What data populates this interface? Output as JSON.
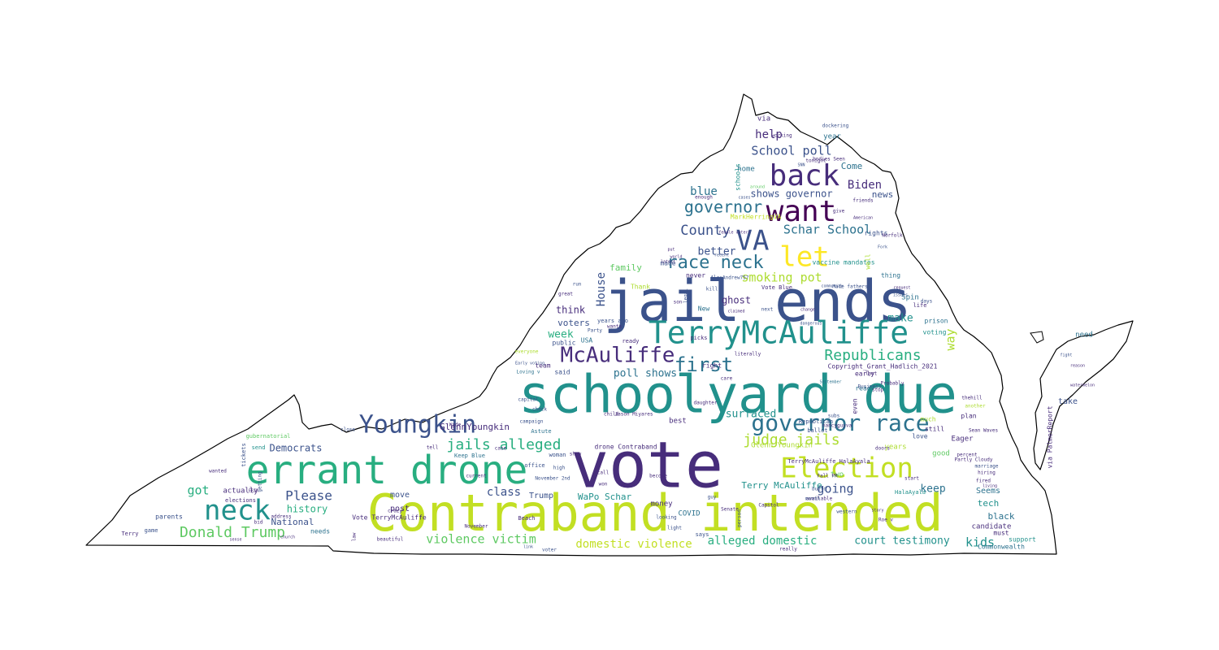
{
  "colors": {
    "background": "#ffffff",
    "outline": "#000000",
    "palette": [
      "#440154",
      "#472d7b",
      "#3b528b",
      "#2c728e",
      "#21918c",
      "#28ae80",
      "#5ec962",
      "#addc30",
      "#c2df23",
      "#fde725"
    ]
  },
  "words": [
    {
      "text": "vote",
      "color": "#472d7b"
    },
    {
      "text": "jail ends",
      "color": "#3b528b"
    },
    {
      "text": "schoolyard due",
      "color": "#21918c"
    },
    {
      "text": "Contraband intended",
      "color": "#c2df23"
    },
    {
      "text": "errant drone",
      "color": "#28ae80"
    },
    {
      "text": "TerryMcAuliffe",
      "color": "#21918c"
    },
    {
      "text": "back",
      "color": "#472d7b"
    },
    {
      "text": "want",
      "color": "#440154"
    },
    {
      "text": "VA",
      "color": "#3b528b"
    },
    {
      "text": "let",
      "color": "#fde725"
    },
    {
      "text": "Youngkin",
      "color": "#3b528b"
    },
    {
      "text": "governor race",
      "color": "#2c728e"
    },
    {
      "text": "Election",
      "color": "#c2df23"
    },
    {
      "text": "neck",
      "color": "#21918c"
    },
    {
      "text": "McAuliffe",
      "color": "#472d7b"
    },
    {
      "text": "first",
      "color": "#2c728e"
    },
    {
      "text": "race neck",
      "color": "#2c728e"
    },
    {
      "text": "governor",
      "color": "#2c728e"
    },
    {
      "text": "Republicans",
      "color": "#28ae80"
    },
    {
      "text": "Donald Trump",
      "color": "#5ec962"
    },
    {
      "text": "jails alleged",
      "color": "#28ae80"
    },
    {
      "text": "judge jails",
      "color": "#addc30"
    },
    {
      "text": "County",
      "color": "#3b528b"
    },
    {
      "text": "School poll",
      "color": "#3b528b"
    },
    {
      "text": "Schar School",
      "color": "#2c728e"
    },
    {
      "text": "smoking pot",
      "color": "#addc30"
    },
    {
      "text": "help",
      "color": "#472d7b"
    },
    {
      "text": "Biden",
      "color": "#472d7b"
    },
    {
      "text": "blue",
      "color": "#2c728e"
    },
    {
      "text": "shows governor",
      "color": "#3b528b"
    },
    {
      "text": "Come",
      "color": "#2c728e"
    },
    {
      "text": "news",
      "color": "#3b528b"
    },
    {
      "text": "better",
      "color": "#3b528b"
    },
    {
      "text": "House",
      "color": "#3b528b"
    },
    {
      "text": "family",
      "color": "#5ec962"
    },
    {
      "text": "ghost",
      "color": "#472d7b"
    },
    {
      "text": "think",
      "color": "#472d7b"
    },
    {
      "text": "voters",
      "color": "#3b528b"
    },
    {
      "text": "week",
      "color": "#28ae80"
    },
    {
      "text": "make",
      "color": "#21918c"
    },
    {
      "text": "way",
      "color": "#addc30"
    },
    {
      "text": "poll shows",
      "color": "#2c728e"
    },
    {
      "text": "got",
      "color": "#28ae80"
    },
    {
      "text": "Please",
      "color": "#3b528b"
    },
    {
      "text": "history",
      "color": "#28ae80"
    },
    {
      "text": "Democrats",
      "color": "#3b528b"
    },
    {
      "text": "going",
      "color": "#3b528b"
    },
    {
      "text": "keep",
      "color": "#2c728e"
    },
    {
      "text": "class",
      "color": "#3b528b"
    },
    {
      "text": "violence victim",
      "color": "#5ec962"
    },
    {
      "text": "domestic violence",
      "color": "#c2df23"
    },
    {
      "text": "alleged domestic",
      "color": "#28ae80"
    },
    {
      "text": "court testimony",
      "color": "#21918c"
    },
    {
      "text": "kids",
      "color": "#21918c"
    },
    {
      "text": "surfaced",
      "color": "#21918c"
    },
    {
      "text": "Terry McAuliffe",
      "color": "#21918c"
    },
    {
      "text": "GlennYoungkin",
      "color": "#472d7b"
    },
    {
      "text": "Glenn Youngkin",
      "color": "#addc30"
    },
    {
      "text": "Copyright_Grant_Hadlich_2021",
      "color": "#472d7b"
    },
    {
      "text": "tech",
      "color": "#21918c"
    },
    {
      "text": "black",
      "color": "#2c728e"
    },
    {
      "text": "Seems",
      "color": "#2c728e"
    },
    {
      "text": "candidate",
      "color": "#472d7b"
    },
    {
      "text": "Commonwealth",
      "color": "#2c728e"
    },
    {
      "text": "via PalmerReport",
      "color": "#472d7b"
    },
    {
      "text": "need",
      "color": "#2c728e"
    },
    {
      "text": "take",
      "color": "#3b528b"
    },
    {
      "text": "National",
      "color": "#3b528b"
    },
    {
      "text": "actually",
      "color": "#472d7b"
    },
    {
      "text": "WaPo Schar",
      "color": "#21918c"
    },
    {
      "text": "Trump",
      "color": "#3b528b"
    },
    {
      "text": "money",
      "color": "#472d7b"
    },
    {
      "text": "COVID",
      "color": "#2c728e"
    },
    {
      "text": "post",
      "color": "#472d7b"
    },
    {
      "text": "move",
      "color": "#3b528b"
    },
    {
      "text": "Vote TerryMcAuliffe",
      "color": "#472d7b"
    },
    {
      "text": "drone Contraband",
      "color": "#472d7b"
    },
    {
      "text": "two",
      "color": "#5ec962"
    },
    {
      "text": "good",
      "color": "#5ec962"
    },
    {
      "text": "years",
      "color": "#addc30"
    },
    {
      "text": "best",
      "color": "#472d7b"
    },
    {
      "text": "much",
      "color": "#addc30"
    },
    {
      "text": "Eager",
      "color": "#472d7b"
    },
    {
      "text": "plan",
      "color": "#472d7b"
    },
    {
      "text": "right",
      "color": "#472d7b"
    },
    {
      "text": "public",
      "color": "#3b528b"
    },
    {
      "text": "USA",
      "color": "#2c728e"
    },
    {
      "text": "team",
      "color": "#472d7b"
    },
    {
      "text": "said",
      "color": "#3b528b"
    },
    {
      "text": "Thank",
      "color": "#addc30"
    },
    {
      "text": "New",
      "color": "#2c728e"
    },
    {
      "text": "never",
      "color": "#472d7b"
    },
    {
      "text": "made",
      "color": "#3b528b"
    },
    {
      "text": "via",
      "color": "#472d7b"
    },
    {
      "text": "year",
      "color": "#2c728e"
    },
    {
      "text": "home",
      "color": "#2c728e"
    },
    {
      "text": "schools",
      "color": "#21918c"
    },
    {
      "text": "MarkHerringVA",
      "color": "#c2df23"
    },
    {
      "text": "vaccine mandates",
      "color": "#21918c"
    },
    {
      "text": "rights",
      "color": "#3b528b"
    },
    {
      "text": "well",
      "color": "#addc30"
    },
    {
      "text": "thing",
      "color": "#2c728e"
    },
    {
      "text": "Vote Blue",
      "color": "#472d7b"
    },
    {
      "text": "Spin",
      "color": "#2c728e"
    },
    {
      "text": "life",
      "color": "#472d7b"
    },
    {
      "text": "prison",
      "color": "#2c728e"
    },
    {
      "text": "voting",
      "color": "#21918c"
    },
    {
      "text": "early",
      "color": "#472d7b"
    },
    {
      "text": "read",
      "color": "#2c728e"
    },
    {
      "text": "even",
      "color": "#472d7b"
    },
    {
      "text": "still",
      "color": "#472d7b"
    },
    {
      "text": "love",
      "color": "#3b528b"
    },
    {
      "text": "must",
      "color": "#472d7b"
    },
    {
      "text": "support",
      "color": "#21918c"
    },
    {
      "text": "Republican",
      "color": "#3b528b"
    },
    {
      "text": "ballot",
      "color": "#3b528b"
    },
    {
      "text": "Beach",
      "color": "#472d7b"
    },
    {
      "text": "office",
      "color": "#3b528b"
    },
    {
      "text": "woman",
      "color": "#3b528b"
    },
    {
      "text": "needs",
      "color": "#2c728e"
    },
    {
      "text": "parents",
      "color": "#3b528b"
    },
    {
      "text": "elections",
      "color": "#472d7b"
    },
    {
      "text": "gubernatorial",
      "color": "#5ec962"
    },
    {
      "text": "send",
      "color": "#21918c"
    },
    {
      "text": "game",
      "color": "#3b528b"
    },
    {
      "text": "Terry",
      "color": "#472d7b"
    },
    {
      "text": "tickets",
      "color": "#3b528b"
    },
    {
      "text": "getting",
      "color": "#3b528b"
    },
    {
      "text": "law",
      "color": "#472d7b"
    },
    {
      "text": "crazy",
      "color": "#472d7b"
    },
    {
      "text": "November",
      "color": "#472d7b"
    },
    {
      "text": "beautiful",
      "color": "#472d7b"
    },
    {
      "text": "HalaAyala",
      "color": "#21918c"
    },
    {
      "text": "TerryMcAuliffe HalaAyala",
      "color": "#472d7b"
    },
    {
      "text": "Keep Blue",
      "color": "#2c728e"
    },
    {
      "text": "Astute",
      "color": "#2c728e"
    },
    {
      "text": "campaign",
      "color": "#3b528b"
    },
    {
      "text": "check",
      "color": "#3b528b"
    },
    {
      "text": "capital",
      "color": "#3b528b"
    },
    {
      "text": "Loving v",
      "color": "#2c728e"
    },
    {
      "text": "Early voting",
      "color": "#3b528b"
    },
    {
      "text": "everyone",
      "color": "#addc30"
    },
    {
      "text": "great",
      "color": "#472d7b"
    },
    {
      "text": "run",
      "color": "#3b528b"
    },
    {
      "text": "years ago",
      "color": "#3b528b"
    },
    {
      "text": "wants",
      "color": "#472d7b"
    },
    {
      "text": "Party",
      "color": "#3b528b"
    },
    {
      "text": "ready",
      "color": "#472d7b"
    },
    {
      "text": "picks",
      "color": "#472d7b"
    },
    {
      "text": "literally",
      "color": "#472d7b"
    },
    {
      "text": "Business",
      "color": "#3b528b"
    },
    {
      "text": "Probably",
      "color": "#472d7b"
    },
    {
      "text": "nancyguyva",
      "color": "#472d7b"
    },
    {
      "text": "subs",
      "color": "#3b528b"
    },
    {
      "text": "last",
      "color": "#472d7b"
    },
    {
      "text": "care",
      "color": "#472d7b"
    },
    {
      "text": "daughter",
      "color": "#472d7b"
    },
    {
      "text": "September",
      "color": "#2c728e"
    },
    {
      "text": "kill",
      "color": "#3b528b"
    },
    {
      "text": "legal",
      "color": "#3b528b"
    },
    {
      "text": "son",
      "color": "#472d7b"
    },
    {
      "text": "claimed",
      "color": "#472d7b"
    },
    {
      "text": "next",
      "color": "#3b528b"
    },
    {
      "text": "change",
      "color": "#472d7b"
    },
    {
      "text": "dangerous",
      "color": "#3b528b"
    },
    {
      "text": "community",
      "color": "#3b528b"
    },
    {
      "text": "Made fathers",
      "color": "#3b528b"
    },
    {
      "text": "AlexAndrew757",
      "color": "#3b528b"
    },
    {
      "text": "recent",
      "color": "#3b528b"
    },
    {
      "text": "latest",
      "color": "#472d7b"
    },
    {
      "text": "put",
      "color": "#472d7b"
    },
    {
      "text": "world",
      "color": "#472d7b"
    },
    {
      "text": "female voters",
      "color": "#472d7b"
    },
    {
      "text": "friends",
      "color": "#472d7b"
    },
    {
      "text": "enough",
      "color": "#472d7b"
    },
    {
      "text": "cases",
      "color": "#3b528b"
    },
    {
      "text": "around",
      "color": "#5ec962"
    },
    {
      "text": "SNN",
      "color": "#3b528b"
    },
    {
      "text": "bodies Seen",
      "color": "#472d7b"
    },
    {
      "text": "tonight",
      "color": "#472d7b"
    },
    {
      "text": "working",
      "color": "#472d7b"
    },
    {
      "text": "dockering",
      "color": "#3b528b"
    },
    {
      "text": "Norfolk",
      "color": "#472d7b"
    },
    {
      "text": "Fork",
      "color": "#3b528b"
    },
    {
      "text": "request",
      "color": "#472d7b"
    },
    {
      "text": "issues",
      "color": "#3b528b"
    },
    {
      "text": "days",
      "color": "#3b528b"
    },
    {
      "text": "give",
      "color": "#472d7b"
    },
    {
      "text": "American",
      "color": "#472d7b"
    },
    {
      "text": "stop",
      "color": "#472d7b"
    },
    {
      "text": "thehill",
      "color": "#472d7b"
    },
    {
      "text": "another",
      "color": "#addc30"
    },
    {
      "text": "Sean Waves",
      "color": "#472d7b"
    },
    {
      "text": "percent",
      "color": "#472d7b"
    },
    {
      "text": "Partly Cloudy",
      "color": "#472d7b"
    },
    {
      "text": "marriage",
      "color": "#3b528b"
    },
    {
      "text": "hiring",
      "color": "#472d7b"
    },
    {
      "text": "fired",
      "color": "#472d7b"
    },
    {
      "text": "living",
      "color": "#472d7b"
    },
    {
      "text": "doors",
      "color": "#472d7b"
    },
    {
      "text": "church",
      "color": "#472d7b"
    },
    {
      "text": "sense",
      "color": "#472d7b"
    },
    {
      "text": "show",
      "color": "#472d7b"
    },
    {
      "text": "November 2nd",
      "color": "#3b528b"
    },
    {
      "text": "call",
      "color": "#472d7b"
    },
    {
      "text": "become",
      "color": "#472d7b"
    },
    {
      "text": "available",
      "color": "#472d7b"
    },
    {
      "text": "Roe v",
      "color": "#472d7b"
    },
    {
      "text": "Capitol",
      "color": "#472d7b"
    },
    {
      "text": "Senate",
      "color": "#472d7b"
    },
    {
      "text": "really",
      "color": "#472d7b"
    },
    {
      "text": "says",
      "color": "#3b528b"
    },
    {
      "text": "voter",
      "color": "#3b528b"
    },
    {
      "text": "light",
      "color": "#3b528b"
    },
    {
      "text": "looking",
      "color": "#3b528b"
    },
    {
      "text": "person",
      "color": "#3b528b"
    },
    {
      "text": "guy",
      "color": "#3b528b"
    },
    {
      "text": "high",
      "color": "#3b528b"
    },
    {
      "text": "current",
      "color": "#472d7b"
    },
    {
      "text": "close",
      "color": "#3b528b"
    },
    {
      "text": "watermelon",
      "color": "#472d7b"
    },
    {
      "text": "reason",
      "color": "#472d7b"
    },
    {
      "text": "fight",
      "color": "#3b528b"
    },
    {
      "text": "Fall PR",
      "color": "#472d7b"
    },
    {
      "text": "build",
      "color": "#3b528b"
    },
    {
      "text": "month",
      "color": "#3b528b"
    },
    {
      "text": "start",
      "color": "#472d7b"
    },
    {
      "text": "western",
      "color": "#3b528b"
    },
    {
      "text": "address",
      "color": "#472d7b"
    },
    {
      "text": "bid",
      "color": "#472d7b"
    },
    {
      "text": "wanted",
      "color": "#472d7b"
    },
    {
      "text": "ERIK",
      "color": "#472d7b"
    },
    {
      "text": "story",
      "color": "#472d7b"
    },
    {
      "text": "link",
      "color": "#3b528b"
    },
    {
      "text": "Wade",
      "color": "#472d7b"
    },
    {
      "text": "tell",
      "color": "#472d7b"
    },
    {
      "text": "won",
      "color": "#472d7b"
    },
    {
      "text": "child",
      "color": "#472d7b"
    },
    {
      "text": "case",
      "color": "#472d7b"
    },
    {
      "text": "Jason Miyares",
      "color": "#472d7b"
    }
  ]
}
